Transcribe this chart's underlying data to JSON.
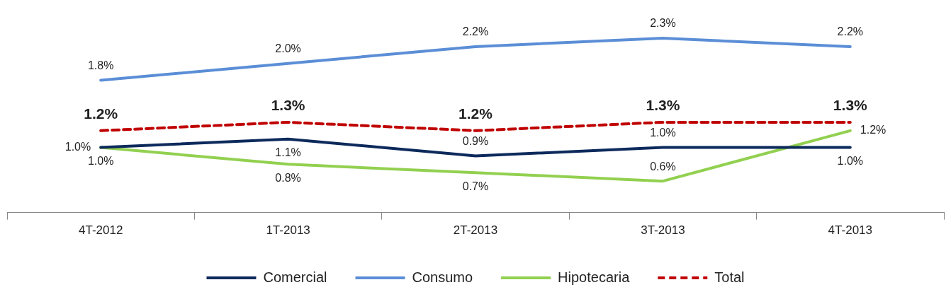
{
  "chart_data": {
    "type": "line",
    "categories": [
      "4T-2012",
      "1T-2013",
      "2T-2013",
      "3T-2013",
      "4T-2013"
    ],
    "legend": "bottom",
    "marker": "none",
    "series": [
      {
        "name": "Comercial",
        "color": "#0d2a5c",
        "values": [
          1.0,
          1.1,
          0.9,
          1.0,
          1.0
        ],
        "value_labels": [
          "1.0%",
          "1.1%",
          "0.9%",
          "1.0%",
          "1.0%"
        ]
      },
      {
        "name": "Consumo",
        "color": "#5b8ed6",
        "values": [
          1.8,
          2.0,
          2.2,
          2.3,
          2.2
        ],
        "value_labels": [
          "1.8%",
          "2.0%",
          "2.2%",
          "2.3%",
          "2.2%"
        ]
      },
      {
        "name": "Hipotecaria",
        "color": "#92d050",
        "values": [
          1.0,
          0.8,
          0.7,
          0.6,
          1.2
        ],
        "value_labels": [
          "1.0%",
          "0.8%",
          "0.7%",
          "0.6%",
          "1.2%"
        ]
      },
      {
        "name": "Total",
        "color": "#c00000",
        "line_style": "dashed",
        "values": [
          1.2,
          1.3,
          1.2,
          1.3,
          1.3
        ],
        "value_labels": [
          "1.2%",
          "1.3%",
          "1.2%",
          "1.3%",
          "1.3%"
        ]
      }
    ]
  }
}
